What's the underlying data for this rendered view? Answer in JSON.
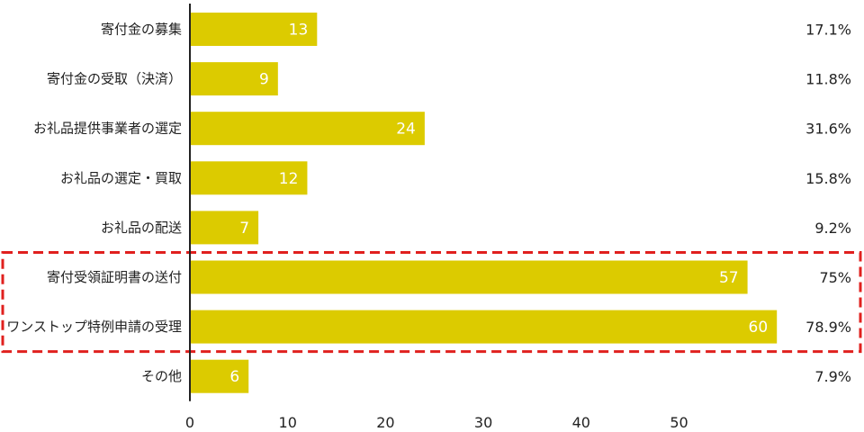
{
  "chart_data": {
    "type": "bar",
    "orientation": "horizontal",
    "categories": [
      "寄付金の募集",
      "寄付金の受取（決済）",
      "お礼品提供事業者の選定",
      "お礼品の選定・買取",
      "お礼品の配送",
      "寄付受領証明書の送付",
      "ワンストップ特例申請の受理",
      "その他"
    ],
    "values": [
      13,
      9,
      24,
      12,
      7,
      57,
      60,
      6
    ],
    "percentages": [
      "17.1%",
      "11.8%",
      "31.6%",
      "15.8%",
      "9.2%",
      "75%",
      "78.9%",
      "7.9%"
    ],
    "xlim": [
      0,
      60
    ],
    "xticks": [
      "0",
      "10",
      "20",
      "30",
      "40",
      "50"
    ],
    "grid": false,
    "bar_color": "#dccb00",
    "value_label_color": "#ffffff",
    "highlight": {
      "categories": [
        "寄付受領証明書の送付",
        "ワンストップ特例申請の受理"
      ],
      "style": "dashed-box",
      "color": "#e0201e"
    },
    "title": "",
    "xlabel": "",
    "ylabel": ""
  }
}
